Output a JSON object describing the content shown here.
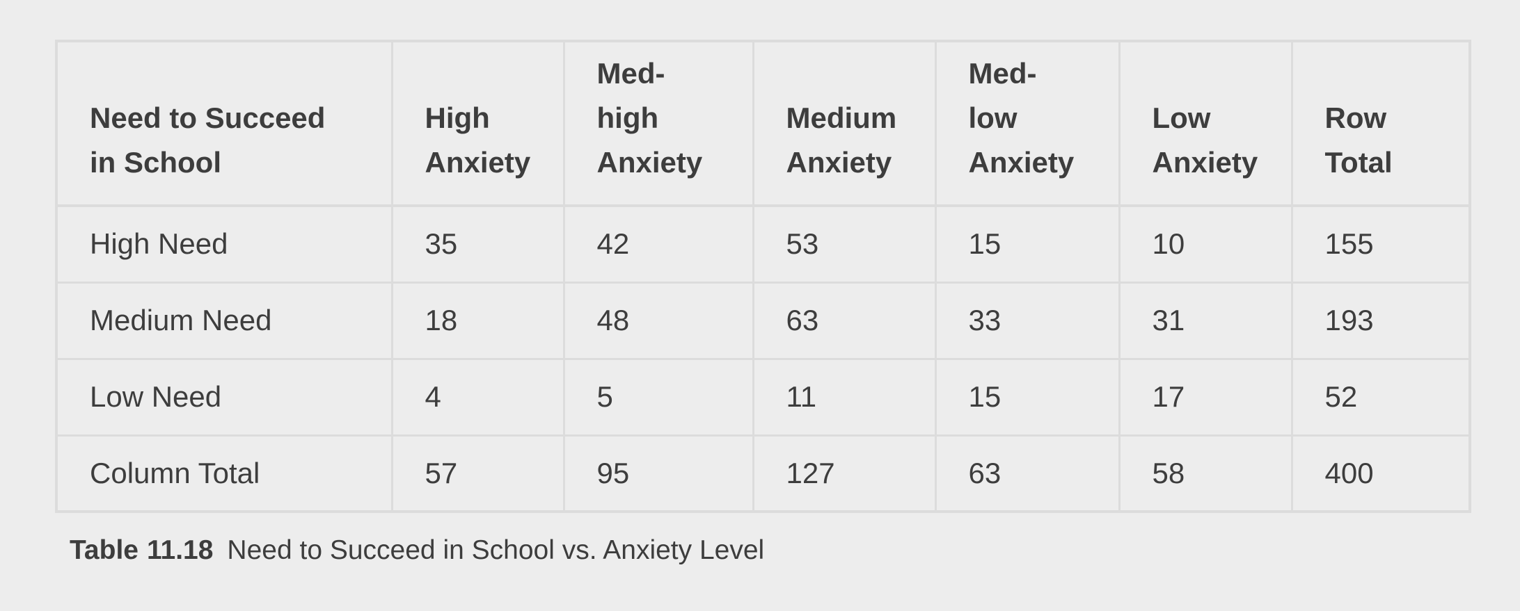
{
  "table": {
    "headers": [
      [
        "Need to Succeed",
        "in School"
      ],
      [
        "High",
        "Anxiety"
      ],
      [
        "Med-",
        "high",
        "Anxiety"
      ],
      [
        "Medium",
        "Anxiety"
      ],
      [
        "Med-",
        "low",
        "Anxiety"
      ],
      [
        "Low",
        "Anxiety"
      ],
      [
        "Row",
        "Total"
      ]
    ],
    "rows": [
      [
        "High Need",
        "35",
        "42",
        "53",
        "15",
        "10",
        "155"
      ],
      [
        "Medium Need",
        "18",
        "48",
        "63",
        "33",
        "31",
        "193"
      ],
      [
        "Low Need",
        "4",
        "5",
        "11",
        "15",
        "17",
        "52"
      ],
      [
        "Column Total",
        "57",
        "95",
        "127",
        "63",
        "58",
        "400"
      ]
    ]
  },
  "caption": {
    "label": "Table",
    "number": "11.18",
    "text": "Need to Succeed in School vs. Anxiety Level"
  }
}
